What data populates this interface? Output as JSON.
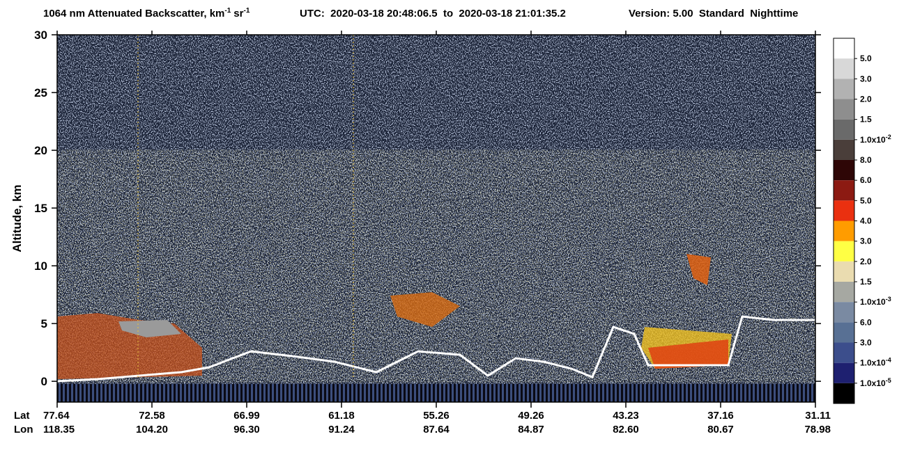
{
  "chart_data": {
    "type": "curtain",
    "title": {
      "main": "1064 nm Attenuated Backscatter, km",
      "sup1": "-1",
      "unit2": "sr",
      "sup2": "-1"
    },
    "subtitle": "UTC:  2020-03-18 20:48:06.5  to  2020-03-18 21:01:35.2",
    "version": "Version: 5.00  Standard  Nighttime",
    "y_label": "Altitude, km",
    "ylim": [
      -1.8,
      30
    ],
    "yticks": [
      0,
      5,
      10,
      15,
      20,
      25,
      30
    ],
    "x_row_labels": [
      "Lat",
      "Lon"
    ],
    "x_ticks": [
      {
        "lat": "77.64",
        "lon": "118.35"
      },
      {
        "lat": "72.58",
        "lon": "104.20"
      },
      {
        "lat": "66.99",
        "lon": "96.30"
      },
      {
        "lat": "61.18",
        "lon": "91.24"
      },
      {
        "lat": "55.26",
        "lon": "87.64"
      },
      {
        "lat": "49.26",
        "lon": "84.87"
      },
      {
        "lat": "43.23",
        "lon": "82.60"
      },
      {
        "lat": "37.16",
        "lon": "80.67"
      },
      {
        "lat": "31.11",
        "lon": "78.98"
      }
    ],
    "colorbar": {
      "colors": [
        "#ffffff",
        "#d8d8d8",
        "#b2b2b2",
        "#8e8e8e",
        "#6a6a6a",
        "#4a3e3a",
        "#2e0606",
        "#8c1a12",
        "#ea3010",
        "#ff9c00",
        "#ffff44",
        "#eadcb0",
        "#a6a8a2",
        "#7a8aa2",
        "#587094",
        "#3c4e8c",
        "#1e2070",
        "#000000"
      ],
      "labels": [
        {
          "text": "5.0"
        },
        {
          "text": "3.0"
        },
        {
          "text": "2.0"
        },
        {
          "text": "1.5"
        },
        {
          "text": "1.0x10",
          "exp": "-2"
        },
        {
          "text": "8.0"
        },
        {
          "text": "6.0"
        },
        {
          "text": "5.0"
        },
        {
          "text": "4.0"
        },
        {
          "text": "3.0"
        },
        {
          "text": "2.0"
        },
        {
          "text": "1.5"
        },
        {
          "text": "1.0x10",
          "exp": "-3"
        },
        {
          "text": "6.0"
        },
        {
          "text": "3.0"
        },
        {
          "text": "1.0x10",
          "exp": "-4"
        },
        {
          "text": "1.0x10",
          "exp": "-5"
        }
      ]
    }
  }
}
